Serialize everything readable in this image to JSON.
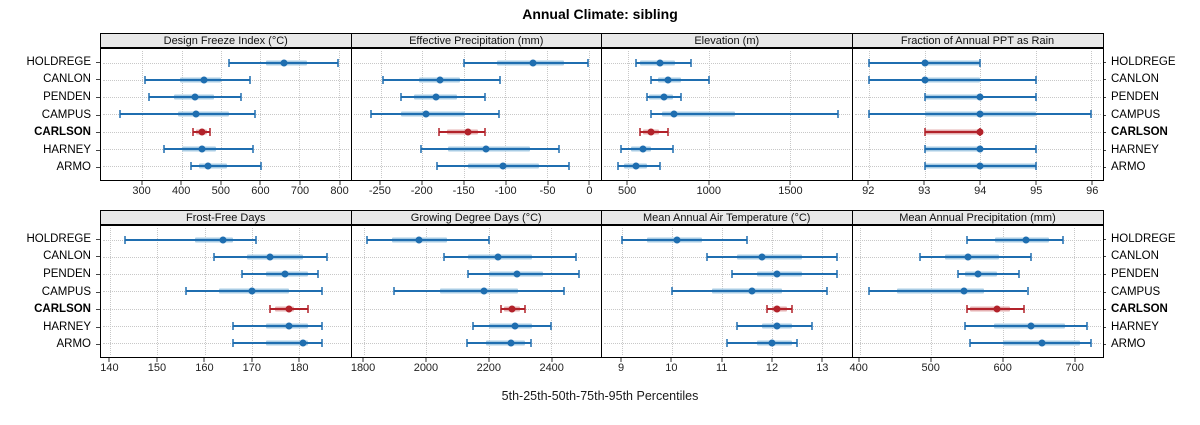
{
  "title": "Annual Climate: sibling",
  "caption": "5th-25th-50th-75th-95th Percentiles",
  "colors": {
    "series_dark": "#1f6eb0",
    "series_light": "#a9cce4",
    "highlight_dark": "#b2222a",
    "highlight_light": "#e5b0b2",
    "grid": "#c8c8c8",
    "strip_bg": "#e8e8e8",
    "panel_border": "#000000",
    "tick_text": "#222222"
  },
  "chart_data": {
    "type": "scatter",
    "subtype": "percentile-interval-dotplot",
    "layout": {
      "rows": 2,
      "cols": 4,
      "grid": "dotted",
      "station_labels": "both-sides"
    },
    "percentile_labels": [
      "5th",
      "25th",
      "50th",
      "75th",
      "95th"
    ],
    "stations": [
      "HOLDREGE",
      "CANLON",
      "PENDEN",
      "CAMPUS",
      "CARLSON",
      "HARNEY",
      "ARMO"
    ],
    "highlight_station": "CARLSON",
    "panels": [
      {
        "title": "Design Freeze Index (°C)",
        "row": 0,
        "ticks": [
          300,
          400,
          500,
          600,
          700,
          800
        ],
        "domain": [
          195,
          830
        ],
        "series": [
          {
            "station": "HOLDREGE",
            "percentiles": [
              520,
              615,
              660,
              720,
              798
            ]
          },
          {
            "station": "CANLON",
            "percentiles": [
              308,
              395,
              457,
              500,
              573
            ]
          },
          {
            "station": "PENDEN",
            "percentiles": [
              317,
              380,
              435,
              483,
              552
            ]
          },
          {
            "station": "CAMPUS",
            "percentiles": [
              243,
              390,
              436,
              520,
              586
            ]
          },
          {
            "station": "CARLSON",
            "percentiles": [
              430,
              437,
              453,
              464,
              473
            ]
          },
          {
            "station": "HARNEY",
            "percentiles": [
              355,
              400,
              453,
              487,
              582
            ]
          },
          {
            "station": "ARMO",
            "percentiles": [
              424,
              445,
              467,
              515,
              603
            ]
          }
        ]
      },
      {
        "title": "Effective Precipitation (mm)",
        "row": 0,
        "ticks": [
          -250,
          -200,
          -150,
          -100,
          -50,
          0
        ],
        "domain": [
          -285,
          15
        ],
        "series": [
          {
            "station": "HOLDREGE",
            "percentiles": [
              -150,
              -110,
              -67,
              -30,
              -1
            ]
          },
          {
            "station": "CANLON",
            "percentiles": [
              -247,
              -204,
              -178,
              -155,
              -107
            ]
          },
          {
            "station": "PENDEN",
            "percentiles": [
              -225,
              -210,
              -183,
              -158,
              -124
            ]
          },
          {
            "station": "CAMPUS",
            "percentiles": [
              -261,
              -225,
              -196,
              -149,
              -108
            ]
          },
          {
            "station": "CARLSON",
            "percentiles": [
              -180,
              -170,
              -145,
              -133,
              -125
            ]
          },
          {
            "station": "HARNEY",
            "percentiles": [
              -202,
              -169,
              -123,
              -70,
              -35
            ]
          },
          {
            "station": "ARMO",
            "percentiles": [
              -182,
              -145,
              -103,
              -60,
              -24
            ]
          }
        ]
      },
      {
        "title": "Elevation (m)",
        "row": 0,
        "ticks": [
          500,
          1000,
          1500
        ],
        "domain": [
          340,
          1880
        ],
        "series": [
          {
            "station": "HOLDREGE",
            "percentiles": [
              550,
              575,
              700,
              790,
              890
            ]
          },
          {
            "station": "CANLON",
            "percentiles": [
              640,
              685,
              750,
              825,
              1000
            ]
          },
          {
            "station": "PENDEN",
            "percentiles": [
              615,
              630,
              725,
              780,
              830
            ]
          },
          {
            "station": "CAMPUS",
            "percentiles": [
              640,
              710,
              785,
              1160,
              1795
            ]
          },
          {
            "station": "CARLSON",
            "percentiles": [
              575,
              595,
              640,
              690,
              745
            ]
          },
          {
            "station": "HARNEY",
            "percentiles": [
              455,
              520,
              595,
              640,
              780
            ]
          },
          {
            "station": "ARMO",
            "percentiles": [
              440,
              475,
              550,
              615,
              695
            ]
          }
        ]
      },
      {
        "title": "Fraction of Annual PPT as Rain",
        "row": 0,
        "ticks": [
          92,
          93,
          94,
          95,
          96
        ],
        "domain": [
          91.7,
          96.2
        ],
        "series": [
          {
            "station": "HOLDREGE",
            "percentiles": [
              92,
              93,
              93,
              94,
              94
            ]
          },
          {
            "station": "CANLON",
            "percentiles": [
              92,
              93,
              93,
              94,
              95
            ]
          },
          {
            "station": "PENDEN",
            "percentiles": [
              93,
              93,
              94,
              94,
              95
            ]
          },
          {
            "station": "CAMPUS",
            "percentiles": [
              92,
              93,
              94,
              95,
              96
            ]
          },
          {
            "station": "CARLSON",
            "percentiles": [
              93,
              93,
              94,
              94,
              94
            ]
          },
          {
            "station": "HARNEY",
            "percentiles": [
              93,
              93,
              94,
              94,
              95
            ]
          },
          {
            "station": "ARMO",
            "percentiles": [
              93,
              93,
              94,
              95,
              95
            ]
          }
        ]
      },
      {
        "title": "Frost-Free Days",
        "row": 1,
        "ticks": [
          140,
          150,
          160,
          170,
          180
        ],
        "domain": [
          138,
          191
        ],
        "series": [
          {
            "station": "HOLDREGE",
            "percentiles": [
              143,
              158,
              164,
              166,
              171
            ]
          },
          {
            "station": "CANLON",
            "percentiles": [
              162,
              169,
              174,
              181,
              186
            ]
          },
          {
            "station": "PENDEN",
            "percentiles": [
              168,
              173,
              177,
              182,
              184
            ]
          },
          {
            "station": "CAMPUS",
            "percentiles": [
              156,
              163,
              170,
              178,
              185
            ]
          },
          {
            "station": "CARLSON",
            "percentiles": [
              174,
              175,
              178,
              179,
              182
            ]
          },
          {
            "station": "HARNEY",
            "percentiles": [
              166,
              173,
              178,
              182,
              185
            ]
          },
          {
            "station": "ARMO",
            "percentiles": [
              166,
              173,
              181,
              182,
              185
            ]
          }
        ]
      },
      {
        "title": "Growing Degree Days (°C)",
        "row": 1,
        "ticks": [
          1800,
          2000,
          2200,
          2400
        ],
        "domain": [
          1760,
          2560
        ],
        "series": [
          {
            "station": "HOLDREGE",
            "percentiles": [
              1810,
              1890,
              1975,
              2065,
              2200
            ]
          },
          {
            "station": "CANLON",
            "percentiles": [
              2055,
              2135,
              2230,
              2340,
              2480
            ]
          },
          {
            "station": "PENDEN",
            "percentiles": [
              2135,
              2200,
              2290,
              2375,
              2490
            ]
          },
          {
            "station": "CAMPUS",
            "percentiles": [
              1895,
              2045,
              2185,
              2295,
              2440
            ]
          },
          {
            "station": "CARLSON",
            "percentiles": [
              2240,
              2250,
              2275,
              2300,
              2315
            ]
          },
          {
            "station": "HARNEY",
            "percentiles": [
              2150,
              2200,
              2285,
              2340,
              2400
            ]
          },
          {
            "station": "ARMO",
            "percentiles": [
              2130,
              2190,
              2270,
              2315,
              2335
            ]
          }
        ]
      },
      {
        "title": "Mean Annual Air Temperature (°C)",
        "row": 1,
        "ticks": [
          9,
          10,
          11,
          12,
          13
        ],
        "domain": [
          8.6,
          13.6
        ],
        "series": [
          {
            "station": "HOLDREGE",
            "percentiles": [
              9.0,
              9.5,
              10.1,
              10.6,
              11.5
            ]
          },
          {
            "station": "CANLON",
            "percentiles": [
              10.7,
              11.3,
              11.8,
              12.6,
              13.3
            ]
          },
          {
            "station": "PENDEN",
            "percentiles": [
              11.2,
              11.7,
              12.1,
              12.6,
              13.3
            ]
          },
          {
            "station": "CAMPUS",
            "percentiles": [
              10.0,
              10.8,
              11.6,
              12.2,
              13.1
            ]
          },
          {
            "station": "CARLSON",
            "percentiles": [
              11.9,
              12.0,
              12.1,
              12.3,
              12.4
            ]
          },
          {
            "station": "HARNEY",
            "percentiles": [
              11.3,
              11.8,
              12.1,
              12.4,
              12.8
            ]
          },
          {
            "station": "ARMO",
            "percentiles": [
              11.1,
              11.7,
              12.0,
              12.4,
              12.5
            ]
          }
        ]
      },
      {
        "title": "Mean Annual Precipitation (mm)",
        "row": 1,
        "ticks": [
          400,
          500,
          600,
          700
        ],
        "domain": [
          390,
          740
        ],
        "series": [
          {
            "station": "HOLDREGE",
            "percentiles": [
              550,
              590,
              633,
              665,
              685
            ]
          },
          {
            "station": "CANLON",
            "percentiles": [
              485,
              520,
              552,
              595,
              640
            ]
          },
          {
            "station": "PENDEN",
            "percentiles": [
              537,
              548,
              565,
              593,
              623
            ]
          },
          {
            "station": "CAMPUS",
            "percentiles": [
              413,
              452,
              546,
              574,
              635
            ]
          },
          {
            "station": "CARLSON",
            "percentiles": [
              550,
              555,
              592,
              610,
              630
            ]
          },
          {
            "station": "HARNEY",
            "percentiles": [
              548,
              588,
              640,
              687,
              718
            ]
          },
          {
            "station": "ARMO",
            "percentiles": [
              554,
              600,
              655,
              708,
              724
            ]
          }
        ]
      }
    ]
  }
}
